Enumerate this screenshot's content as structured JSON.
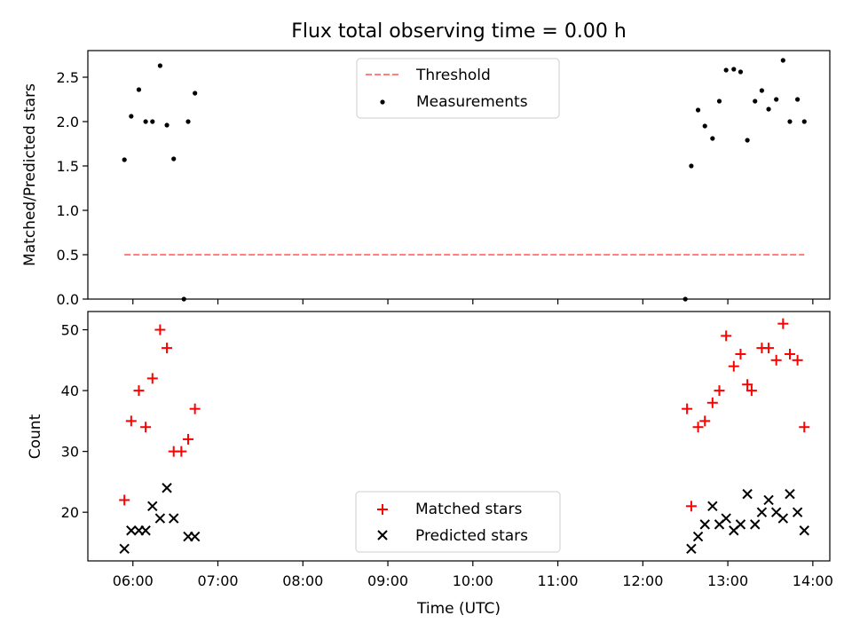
{
  "chart_data": [
    {
      "type": "scatter",
      "title": "Flux total observing time = 0.00 h",
      "xlabel": "",
      "ylabel": "Matched/Predicted stars",
      "xlim": [
        5.47,
        14.2
      ],
      "ylim": [
        0,
        2.8
      ],
      "yticks": [
        0.0,
        0.5,
        1.0,
        1.5,
        2.0,
        2.5
      ],
      "ytick_labels": [
        "0.0",
        "0.5",
        "1.0",
        "1.5",
        "2.0",
        "2.5"
      ],
      "grid": false,
      "legend": "upper-center",
      "colors": {
        "threshold": "#ff7f7f",
        "measurements": "#000000"
      },
      "threshold": {
        "name": "Threshold",
        "y": 0.5,
        "x": [
          5.9,
          13.9
        ]
      },
      "measurements": {
        "name": "Measurements",
        "x": [
          5.9,
          5.98,
          6.07,
          6.15,
          6.23,
          6.32,
          6.4,
          6.48,
          6.6,
          6.65,
          6.73,
          12.5,
          12.57,
          12.65,
          12.73,
          12.82,
          12.9,
          12.98,
          13.07,
          13.15,
          13.23,
          13.32,
          13.4,
          13.48,
          13.57,
          13.65,
          13.73,
          13.82,
          13.9
        ],
        "y": [
          1.57,
          2.06,
          2.36,
          2.0,
          2.0,
          2.63,
          1.96,
          1.58,
          0.0,
          2.0,
          2.32,
          0.0,
          1.5,
          2.13,
          1.95,
          1.81,
          2.23,
          2.58,
          2.59,
          2.56,
          1.79,
          2.23,
          2.35,
          2.14,
          2.25,
          2.69,
          2.0,
          2.25,
          2.0
        ]
      }
    },
    {
      "type": "scatter",
      "title": "",
      "xlabel": "Time (UTC)",
      "ylabel": "Count",
      "xlim": [
        5.47,
        14.2
      ],
      "ylim": [
        12,
        53
      ],
      "yticks": [
        20,
        30,
        40,
        50
      ],
      "ytick_labels": [
        "20",
        "30",
        "40",
        "50"
      ],
      "xticks": [
        6,
        7,
        8,
        9,
        10,
        11,
        12,
        13,
        14
      ],
      "xtick_labels": [
        "06:00",
        "07:00",
        "08:00",
        "09:00",
        "10:00",
        "11:00",
        "12:00",
        "13:00",
        "14:00"
      ],
      "grid": false,
      "legend": "lower-center",
      "colors": {
        "matched": "#ff0000",
        "predicted": "#000000"
      },
      "series": [
        {
          "name": "Matched stars",
          "marker": "plus",
          "x": [
            5.9,
            5.98,
            6.07,
            6.15,
            6.23,
            6.32,
            6.4,
            6.48,
            6.57,
            6.65,
            6.73,
            12.52,
            12.57,
            12.65,
            12.73,
            12.82,
            12.9,
            12.98,
            13.07,
            13.15,
            13.23,
            13.28,
            13.4,
            13.48,
            13.57,
            13.65,
            13.73,
            13.82,
            13.9
          ],
          "y": [
            22,
            35,
            40,
            34,
            42,
            50,
            47,
            30,
            30,
            32,
            37,
            37,
            21,
            34,
            35,
            38,
            40,
            49,
            44,
            46,
            41,
            40,
            47,
            47,
            45,
            51,
            46,
            45,
            34
          ]
        },
        {
          "name": "Predicted stars",
          "marker": "x",
          "x": [
            5.9,
            5.98,
            6.07,
            6.15,
            6.23,
            6.32,
            6.4,
            6.48,
            6.65,
            6.73,
            12.57,
            12.65,
            12.73,
            12.82,
            12.9,
            12.98,
            13.07,
            13.15,
            13.23,
            13.32,
            13.4,
            13.48,
            13.57,
            13.65,
            13.73,
            13.82,
            13.9
          ],
          "y": [
            14,
            17,
            17,
            17,
            21,
            19,
            24,
            19,
            16,
            16,
            14,
            16,
            18,
            21,
            18,
            19,
            17,
            18,
            23,
            18,
            20,
            22,
            20,
            19,
            23,
            20,
            17
          ]
        }
      ]
    }
  ]
}
